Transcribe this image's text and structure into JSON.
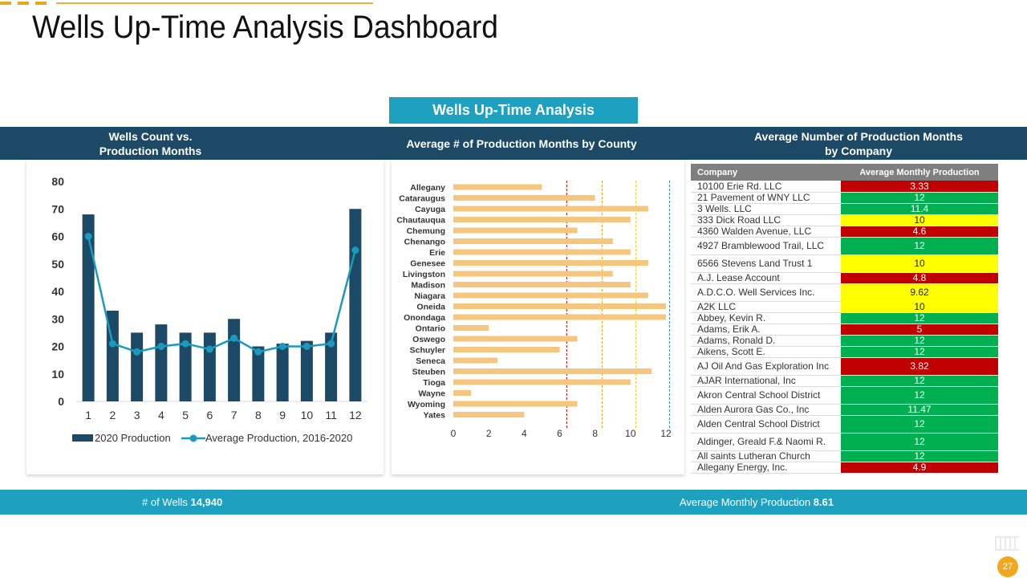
{
  "page": {
    "title": "Wells Up-Time Analysis Dashboard",
    "banner": "Wells Up-Time Analysis",
    "page_number": "27",
    "colors": {
      "navy": "#1c4966",
      "teal": "#1ea1c1",
      "bar_orange": "#f5c77e",
      "red": "#c00000",
      "green": "#00b050",
      "yellow": "#ffff00"
    }
  },
  "headers": {
    "left": "Wells Count vs.\nProduction Months",
    "middle": "Average # of Production Months by County",
    "right": "Average Number of Production Months\nby Company"
  },
  "footer": {
    "wells_label": "# of Wells",
    "wells_value": "14,940",
    "avg_label": "Average  Monthly Production",
    "avg_value": "8.61"
  },
  "chart_data": [
    {
      "type": "bar",
      "categories": [
        "1",
        "2",
        "3",
        "4",
        "5",
        "6",
        "7",
        "8",
        "9",
        "10",
        "11",
        "12"
      ],
      "series": [
        {
          "name": "2020 Production",
          "type": "bar",
          "color": "#1c4966",
          "values": [
            68,
            33,
            25,
            28,
            25,
            25,
            30,
            20,
            21,
            22,
            25,
            70
          ]
        },
        {
          "name": "Average Production, 2016-2020",
          "type": "line",
          "color": "#1a9bbd",
          "values": [
            60,
            21,
            18,
            20,
            21,
            19,
            23,
            18,
            20,
            20,
            21,
            55
          ]
        }
      ],
      "ylim": [
        0,
        80
      ],
      "yticks": [
        0,
        10,
        20,
        30,
        40,
        50,
        60,
        70,
        80
      ],
      "grid": false,
      "legend": "bottom"
    },
    {
      "type": "bar",
      "orientation": "horizontal",
      "categories": [
        "Allegany",
        "Cataraugus",
        "Cayuga",
        "Chautauqua",
        "Chemung",
        "Chenango",
        "Erie",
        "Genesee",
        "Livingston",
        "Madison",
        "Niagara",
        "Oneida",
        "Onondaga",
        "Ontario",
        "Oswego",
        "Schuyler",
        "Seneca",
        "Steuben",
        "Tioga",
        "Wayne",
        "Wyoming",
        "Yates"
      ],
      "values": [
        5,
        8,
        11,
        10,
        7,
        9,
        10,
        11,
        9,
        10,
        11,
        12,
        12,
        2,
        7,
        6,
        2.5,
        11.2,
        10,
        1,
        7,
        4
      ],
      "color": "#f5c77e",
      "xlim": [
        0,
        12
      ],
      "xticks": [
        0,
        2,
        4,
        6,
        8,
        10,
        12
      ],
      "reference_lines": [
        {
          "value": 6.4,
          "color": "#c00000"
        },
        {
          "value": 8.4,
          "color": "#e8a820"
        },
        {
          "value": 10.3,
          "color": "#f5d020"
        },
        {
          "value": 12.2,
          "color": "#1a9b8d"
        }
      ]
    },
    {
      "type": "table",
      "columns": [
        "Company",
        "Average Monthly Production"
      ],
      "rows": [
        {
          "company": "10100 Erie Rd. LLC",
          "value": "3.33",
          "status": "red"
        },
        {
          "company": "21 Pavement of WNY LLC",
          "value": "12",
          "status": "green"
        },
        {
          "company": "3 Wells. LLC",
          "value": "11.4",
          "status": "green"
        },
        {
          "company": "333 Dick Road LLC",
          "value": "10",
          "status": "yellow"
        },
        {
          "company": "4360 Walden Avenue, LLC",
          "value": "4.6",
          "status": "red"
        },
        {
          "company": "4927 Bramblewood Trail, LLC",
          "value": "12",
          "status": "green"
        },
        {
          "company": "6566 Stevens Land Trust 1",
          "value": "10",
          "status": "yellow"
        },
        {
          "company": "A.J. Lease Account",
          "value": "4.8",
          "status": "red"
        },
        {
          "company": "A.D.C.O. Well Services Inc.",
          "value": "9.62",
          "status": "yellow"
        },
        {
          "company": "A2K LLC",
          "value": "10",
          "status": "yellow"
        },
        {
          "company": "Abbey, Kevin R.",
          "value": "12",
          "status": "green"
        },
        {
          "company": "Adams, Erik A.",
          "value": "5",
          "status": "red"
        },
        {
          "company": "Adams, Ronald D.",
          "value": "12",
          "status": "green"
        },
        {
          "company": "Aikens, Scott E.",
          "value": "12",
          "status": "green"
        },
        {
          "company": "AJ Oil And Gas Exploration Inc",
          "value": "3.82",
          "status": "red"
        },
        {
          "company": "AJAR International, Inc",
          "value": "12",
          "status": "green"
        },
        {
          "company": "Akron Central School District",
          "value": "12",
          "status": "green"
        },
        {
          "company": "Alden Aurora Gas Co., Inc",
          "value": "11.47",
          "status": "green"
        },
        {
          "company": "Alden Central School District",
          "value": "12",
          "status": "green"
        },
        {
          "company": "Aldinger, Greald F.& Naomi R.",
          "value": "12",
          "status": "green"
        },
        {
          "company": "All saints Lutheran Church",
          "value": "12",
          "status": "green"
        },
        {
          "company": "Allegany Energy, Inc.",
          "value": "4.9",
          "status": "red"
        }
      ]
    }
  ]
}
